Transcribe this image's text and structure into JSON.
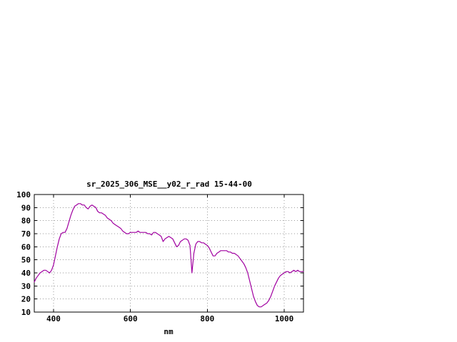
{
  "window": {
    "background_color": "#ffffff"
  },
  "chart_data": {
    "type": "line",
    "title": "sr_2025_306_MSE__y02_r_rad 15-44-00",
    "xlabel": "nm",
    "ylabel": "",
    "xlim": [
      350,
      1050
    ],
    "ylim": [
      10,
      100
    ],
    "x_ticks": [
      400,
      600,
      800,
      1000
    ],
    "y_ticks": [
      10,
      20,
      30,
      40,
      50,
      60,
      70,
      80,
      90,
      100
    ],
    "grid": true,
    "legend": "none",
    "line_color": "#a000a0",
    "series": [
      {
        "name": "sr_2025_306_MSE__y02_r_rad",
        "x": [
          350,
          355,
          360,
          365,
          370,
          375,
          380,
          385,
          390,
          395,
          400,
          405,
          410,
          415,
          420,
          425,
          430,
          435,
          440,
          445,
          450,
          455,
          460,
          465,
          470,
          475,
          480,
          485,
          490,
          495,
          500,
          505,
          510,
          515,
          520,
          525,
          530,
          535,
          540,
          545,
          550,
          555,
          560,
          565,
          570,
          575,
          580,
          585,
          590,
          595,
          600,
          605,
          610,
          615,
          620,
          625,
          630,
          635,
          640,
          645,
          650,
          655,
          660,
          665,
          670,
          675,
          680,
          685,
          690,
          695,
          700,
          705,
          710,
          715,
          720,
          725,
          730,
          735,
          740,
          745,
          750,
          755,
          760,
          765,
          770,
          775,
          780,
          785,
          790,
          795,
          800,
          805,
          810,
          815,
          820,
          825,
          830,
          835,
          840,
          845,
          850,
          855,
          860,
          865,
          870,
          875,
          880,
          885,
          890,
          895,
          900,
          905,
          910,
          915,
          920,
          925,
          930,
          935,
          940,
          945,
          950,
          955,
          960,
          965,
          970,
          975,
          980,
          985,
          990,
          995,
          1000,
          1005,
          1010,
          1015,
          1020,
          1025,
          1030,
          1035,
          1040,
          1045,
          1050
        ],
        "y": [
          33,
          36,
          38,
          40,
          41,
          42,
          42,
          41,
          40,
          42,
          46,
          53,
          60,
          66,
          70,
          71,
          71,
          74,
          79,
          84,
          88,
          91,
          92,
          93,
          93,
          92,
          92,
          90,
          89,
          91,
          92,
          91,
          90,
          87,
          86,
          86,
          85,
          84,
          82,
          81,
          80,
          78,
          77,
          76,
          75,
          74,
          72,
          71,
          70,
          70,
          71,
          71,
          71,
          71,
          72,
          71,
          71,
          71,
          71,
          70,
          70,
          69,
          71,
          71,
          70,
          69,
          68,
          64,
          66,
          67,
          68,
          67,
          66,
          63,
          60,
          61,
          64,
          65,
          66,
          66,
          65,
          61,
          40,
          55,
          62,
          64,
          64,
          63,
          63,
          62,
          61,
          59,
          56,
          53,
          53,
          55,
          56,
          57,
          57,
          57,
          57,
          56,
          56,
          55,
          55,
          54,
          53,
          51,
          49,
          47,
          44,
          40,
          34,
          28,
          22,
          18,
          15,
          14,
          14,
          15,
          16,
          17,
          19,
          22,
          26,
          30,
          33,
          36,
          38,
          39,
          40,
          41,
          41,
          40,
          41,
          42,
          41,
          42,
          41,
          41,
          41
        ]
      }
    ]
  }
}
